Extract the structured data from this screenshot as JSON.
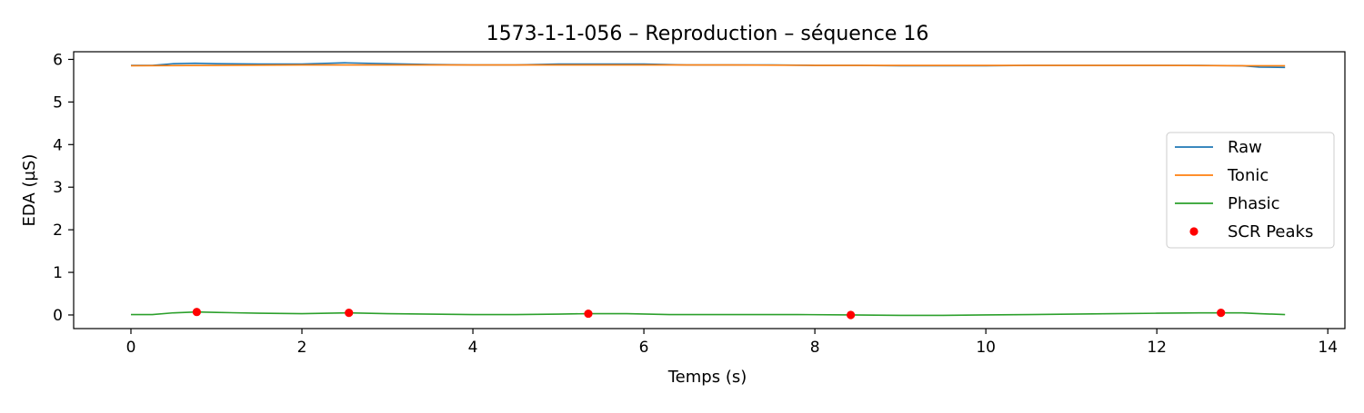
{
  "chart_data": {
    "type": "line",
    "title": "1573-1-1-056 – Reproduction – séquence 16",
    "xlabel": "Temps (s)",
    "ylabel": "EDA (µS)",
    "xlim": [
      -0.67,
      14.2
    ],
    "ylim": [
      -0.32,
      6.18
    ],
    "xticks": [
      0,
      2,
      4,
      6,
      8,
      10,
      12,
      14
    ],
    "yticks": [
      0,
      1,
      2,
      3,
      4,
      5,
      6
    ],
    "grid": false,
    "legend_position": "center-right",
    "series": [
      {
        "name": "Raw",
        "kind": "line",
        "color": "#1f77b4",
        "x": [
          0,
          0.25,
          0.5,
          0.75,
          1.0,
          1.5,
          2.0,
          2.5,
          3.0,
          3.5,
          4.0,
          4.5,
          5.0,
          5.5,
          6.0,
          6.5,
          7.0,
          7.5,
          8.0,
          8.5,
          9.0,
          9.5,
          10.0,
          10.5,
          11.0,
          11.5,
          12.0,
          12.5,
          13.0,
          13.2,
          13.5
        ],
        "y": [
          5.86,
          5.86,
          5.9,
          5.91,
          5.9,
          5.89,
          5.89,
          5.92,
          5.9,
          5.88,
          5.87,
          5.87,
          5.89,
          5.89,
          5.89,
          5.87,
          5.87,
          5.87,
          5.86,
          5.86,
          5.85,
          5.85,
          5.85,
          5.86,
          5.86,
          5.86,
          5.86,
          5.86,
          5.85,
          5.82,
          5.81
        ]
      },
      {
        "name": "Tonic",
        "kind": "line",
        "color": "#ff7f0e",
        "x": [
          0,
          1,
          2,
          3,
          4,
          5,
          6,
          7,
          8,
          9,
          10,
          11,
          12,
          13,
          13.5
        ],
        "y": [
          5.85,
          5.86,
          5.87,
          5.87,
          5.87,
          5.87,
          5.87,
          5.87,
          5.86,
          5.86,
          5.86,
          5.86,
          5.86,
          5.85,
          5.85
        ]
      },
      {
        "name": "Phasic",
        "kind": "line",
        "color": "#2ca02c",
        "x": [
          0,
          0.25,
          0.5,
          0.77,
          1.0,
          1.5,
          2.0,
          2.3,
          2.55,
          3.0,
          3.5,
          4.0,
          4.5,
          5.0,
          5.35,
          5.8,
          6.3,
          6.8,
          7.3,
          7.8,
          8.4,
          9.0,
          9.5,
          10.0,
          10.5,
          11.0,
          11.5,
          12.0,
          12.5,
          12.75,
          13.0,
          13.2,
          13.5
        ],
        "y": [
          0.01,
          0.01,
          0.05,
          0.07,
          0.06,
          0.04,
          0.03,
          0.04,
          0.05,
          0.03,
          0.02,
          0.01,
          0.01,
          0.02,
          0.03,
          0.03,
          0.01,
          0.01,
          0.01,
          0.01,
          0.0,
          -0.01,
          -0.01,
          0.0,
          0.01,
          0.02,
          0.03,
          0.04,
          0.05,
          0.05,
          0.05,
          0.03,
          0.01
        ]
      },
      {
        "name": "SCR Peaks",
        "kind": "scatter",
        "color": "#ff0000",
        "x": [
          0.77,
          2.55,
          5.35,
          8.42,
          12.75
        ],
        "y": [
          0.07,
          0.05,
          0.03,
          0.0,
          0.05
        ]
      }
    ]
  }
}
